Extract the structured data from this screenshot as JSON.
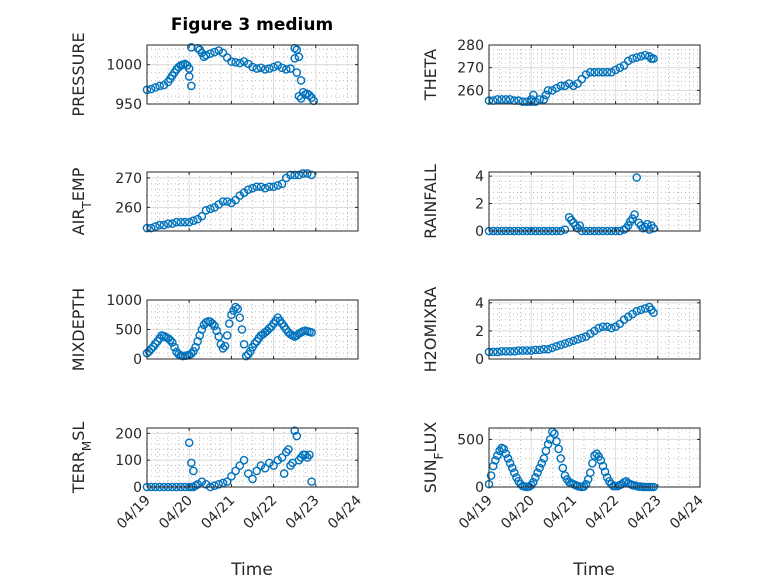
{
  "figure": {
    "title": "Figure 3 medium",
    "xlabel": "Time",
    "marker_color": "#0072BD"
  },
  "chart_data": [
    {
      "type": "scatter",
      "name": "pressure",
      "title": "Figure 3 medium",
      "ylabel": [
        "PRESSURE"
      ],
      "ylim": [
        950,
        1025
      ],
      "yticks": [
        950,
        1000
      ],
      "xlim": [
        0,
        5
      ],
      "xticks": [
        "04/19",
        "04/20",
        "04/21",
        "04/22",
        "04/23",
        "04/24"
      ],
      "x": [
        0,
        0.1,
        0.2,
        0.3,
        0.4,
        0.5,
        0.55,
        0.6,
        0.65,
        0.7,
        0.75,
        0.8,
        0.85,
        0.9,
        0.95,
        1.0,
        1.05,
        1.2,
        1.25,
        1.3,
        1.35,
        1.4,
        1.5,
        1.6,
        1.7,
        1.8,
        1.9,
        2.0,
        2.1,
        2.2,
        2.3,
        2.4,
        2.5,
        2.6,
        2.7,
        2.8,
        2.9,
        3.0,
        3.1,
        3.2,
        3.3,
        3.4,
        3.5,
        3.55,
        3.6,
        3.65,
        3.7,
        3.75,
        3.8,
        3.85,
        3.9,
        3.95,
        1.0,
        1.05,
        3.5,
        3.55,
        3.6,
        3.65
      ],
      "y": [
        968,
        969,
        971,
        973,
        974,
        978,
        982,
        986,
        990,
        994,
        997,
        999,
        1000,
        1001,
        999,
        995,
        1022,
        1021,
        1019,
        1015,
        1010,
        1012,
        1014,
        1016,
        1018,
        1015,
        1009,
        1004,
        1003,
        1002,
        1004,
        1001,
        997,
        995,
        996,
        994,
        995,
        997,
        999,
        996,
        994,
        995,
        1021,
        1019,
        1010,
        980,
        965,
        962,
        963,
        961,
        958,
        954,
        985,
        973,
        1008,
        990,
        960,
        957
      ]
    },
    {
      "type": "scatter",
      "name": "theta",
      "title": "",
      "ylabel": [
        "THETA"
      ],
      "ylim": [
        254,
        280
      ],
      "yticks": [
        260,
        270,
        280
      ],
      "xlim": [
        0,
        5
      ],
      "xticks": [
        "04/19",
        "04/20",
        "04/21",
        "04/22",
        "04/23",
        "04/24"
      ],
      "x": [
        0,
        0.1,
        0.2,
        0.3,
        0.4,
        0.5,
        0.6,
        0.7,
        0.8,
        0.9,
        1.0,
        1.1,
        1.2,
        1.3,
        1.35,
        1.4,
        1.5,
        1.6,
        1.7,
        1.8,
        1.9,
        2.0,
        2.1,
        2.2,
        2.3,
        2.4,
        2.5,
        2.6,
        2.7,
        2.8,
        2.9,
        3.0,
        3.1,
        3.2,
        3.3,
        3.4,
        3.5,
        3.6,
        3.7,
        3.8,
        3.85,
        3.9,
        1.0,
        1.05
      ],
      "y": [
        255.5,
        255.5,
        256,
        256,
        256,
        256,
        255.5,
        255.5,
        255,
        255,
        255,
        255,
        256,
        256,
        258,
        260,
        260,
        261,
        262,
        262,
        263,
        262,
        263,
        265,
        267,
        268,
        268,
        268,
        268,
        268,
        268,
        269,
        270,
        271,
        273,
        274,
        274.5,
        275,
        275.5,
        275,
        274,
        274,
        256,
        258
      ]
    },
    {
      "type": "scatter",
      "name": "air_temp",
      "title": "",
      "ylabel": [
        "AIR",
        "T",
        "EMP"
      ],
      "ylim": [
        252,
        272
      ],
      "yticks": [
        260,
        270
      ],
      "xlim": [
        0,
        5
      ],
      "xticks": [
        "04/19",
        "04/20",
        "04/21",
        "04/22",
        "04/23",
        "04/24"
      ],
      "x": [
        0,
        0.1,
        0.2,
        0.3,
        0.4,
        0.5,
        0.6,
        0.7,
        0.8,
        0.9,
        1.0,
        1.1,
        1.2,
        1.3,
        1.4,
        1.5,
        1.6,
        1.7,
        1.8,
        1.9,
        2.0,
        2.1,
        2.2,
        2.3,
        2.4,
        2.5,
        2.6,
        2.7,
        2.8,
        2.9,
        3.0,
        3.1,
        3.2,
        3.3,
        3.4,
        3.5,
        3.6,
        3.7,
        3.8,
        3.9
      ],
      "y": [
        253,
        253,
        253.5,
        254,
        254,
        254.5,
        254.5,
        255,
        255,
        255,
        255,
        255.5,
        256,
        257,
        259,
        259.5,
        260,
        261,
        262,
        262,
        261.5,
        262.5,
        264,
        265,
        266,
        266.5,
        267,
        267,
        266.5,
        267,
        267,
        267.5,
        268,
        270,
        271,
        271,
        271,
        271.5,
        271.5,
        271
      ]
    },
    {
      "type": "scatter",
      "name": "rainfall",
      "title": "",
      "ylabel": [
        "RAINFALL"
      ],
      "ylim": [
        0,
        4.3
      ],
      "yticks": [
        0,
        2,
        4
      ],
      "xlim": [
        0,
        5
      ],
      "xticks": [
        "04/19",
        "04/20",
        "04/21",
        "04/22",
        "04/23",
        "04/24"
      ],
      "x": [
        0,
        0.1,
        0.2,
        0.3,
        0.4,
        0.5,
        0.6,
        0.7,
        0.8,
        0.9,
        1.0,
        1.1,
        1.2,
        1.3,
        1.4,
        1.5,
        1.6,
        1.7,
        1.8,
        1.9,
        1.95,
        2.0,
        2.05,
        2.1,
        2.15,
        2.2,
        2.3,
        2.4,
        2.5,
        2.6,
        2.7,
        2.8,
        2.9,
        3.0,
        3.1,
        3.2,
        3.25,
        3.3,
        3.35,
        3.4,
        3.45,
        3.5,
        3.55,
        3.6,
        3.65,
        3.7,
        3.75,
        3.8,
        3.85,
        3.9
      ],
      "y": [
        0,
        0,
        0,
        0,
        0,
        0,
        0,
        0,
        0,
        0,
        0,
        0,
        0,
        0,
        0,
        0,
        0,
        0,
        0.1,
        1,
        0.8,
        0.6,
        0.4,
        0.2,
        0.4,
        0,
        0,
        0,
        0,
        0,
        0,
        0,
        0,
        0,
        0,
        0.1,
        0.2,
        0.4,
        0.7,
        0.9,
        1.2,
        3.9,
        0.6,
        0.4,
        0.2,
        0.3,
        0.5,
        0.1,
        0.4,
        0.2
      ]
    },
    {
      "type": "scatter",
      "name": "mixdepth",
      "title": "",
      "ylabel": [
        "MIXDEPTH"
      ],
      "ylim": [
        0,
        1000
      ],
      "yticks": [
        0,
        500,
        1000
      ],
      "xlim": [
        0,
        5
      ],
      "xticks": [
        "04/19",
        "04/20",
        "04/21",
        "04/22",
        "04/23",
        "04/24"
      ],
      "x": [
        0,
        0.05,
        0.1,
        0.15,
        0.2,
        0.25,
        0.3,
        0.35,
        0.4,
        0.45,
        0.5,
        0.55,
        0.6,
        0.65,
        0.7,
        0.75,
        0.8,
        0.85,
        0.9,
        0.95,
        1.0,
        1.05,
        1.1,
        1.15,
        1.2,
        1.25,
        1.3,
        1.35,
        1.4,
        1.45,
        1.5,
        1.55,
        1.6,
        1.65,
        1.7,
        1.75,
        1.8,
        1.85,
        1.9,
        1.95,
        2.0,
        2.05,
        2.1,
        2.15,
        2.2,
        2.25,
        2.3,
        2.35,
        2.4,
        2.45,
        2.5,
        2.55,
        2.6,
        2.65,
        2.7,
        2.75,
        2.8,
        2.85,
        2.9,
        2.95,
        3.0,
        3.05,
        3.1,
        3.15,
        3.2,
        3.25,
        3.3,
        3.35,
        3.4,
        3.45,
        3.5,
        3.55,
        3.6,
        3.65,
        3.7,
        3.75,
        3.8,
        3.85,
        3.9
      ],
      "y": [
        100,
        130,
        170,
        210,
        260,
        300,
        350,
        400,
        390,
        370,
        350,
        320,
        280,
        200,
        120,
        80,
        60,
        50,
        55,
        60,
        70,
        90,
        130,
        200,
        300,
        400,
        500,
        580,
        620,
        640,
        630,
        600,
        560,
        480,
        380,
        250,
        180,
        220,
        400,
        600,
        750,
        820,
        880,
        850,
        700,
        500,
        250,
        50,
        80,
        130,
        200,
        260,
        300,
        350,
        400,
        420,
        450,
        480,
        520,
        550,
        600,
        650,
        700,
        650,
        600,
        550,
        500,
        450,
        420,
        400,
        380,
        400,
        430,
        450,
        470,
        480,
        470,
        460,
        450
      ]
    },
    {
      "type": "scatter",
      "name": "h2omixra",
      "title": "",
      "ylabel": [
        "H2OMIXRA"
      ],
      "ylim": [
        0,
        4.2
      ],
      "yticks": [
        0,
        2,
        4
      ],
      "xlim": [
        0,
        5
      ],
      "xticks": [
        "04/19",
        "04/20",
        "04/21",
        "04/22",
        "04/23",
        "04/24"
      ],
      "x": [
        0,
        0.1,
        0.2,
        0.3,
        0.4,
        0.5,
        0.6,
        0.7,
        0.8,
        0.9,
        1.0,
        1.1,
        1.2,
        1.3,
        1.4,
        1.5,
        1.6,
        1.7,
        1.8,
        1.9,
        2.0,
        2.1,
        2.2,
        2.3,
        2.4,
        2.5,
        2.6,
        2.7,
        2.8,
        2.9,
        3.0,
        3.1,
        3.2,
        3.3,
        3.4,
        3.5,
        3.6,
        3.7,
        3.8,
        3.85,
        3.9
      ],
      "y": [
        0.5,
        0.5,
        0.5,
        0.55,
        0.55,
        0.55,
        0.55,
        0.6,
        0.6,
        0.6,
        0.6,
        0.65,
        0.65,
        0.7,
        0.7,
        0.8,
        0.9,
        1.0,
        1.1,
        1.2,
        1.3,
        1.4,
        1.5,
        1.6,
        1.8,
        2.0,
        2.2,
        2.3,
        2.3,
        2.2,
        2.3,
        2.5,
        2.8,
        3.0,
        3.2,
        3.4,
        3.5,
        3.6,
        3.7,
        3.5,
        3.3
      ]
    },
    {
      "type": "scatter",
      "name": "terr_msl",
      "title": "",
      "ylabel": [
        "TERR",
        "M",
        "SL"
      ],
      "ylim": [
        0,
        220
      ],
      "yticks": [
        0,
        100,
        200
      ],
      "xlim": [
        0,
        5
      ],
      "xticks": [
        "04/19",
        "04/20",
        "04/21",
        "04/22",
        "04/23",
        "04/24"
      ],
      "x": [
        0,
        0.1,
        0.2,
        0.3,
        0.4,
        0.5,
        0.6,
        0.7,
        0.8,
        0.9,
        1.0,
        1.05,
        1.1,
        1.15,
        1.2,
        1.3,
        1.4,
        1.5,
        1.6,
        1.7,
        1.8,
        1.9,
        2.0,
        2.1,
        2.2,
        2.3,
        2.4,
        2.5,
        2.6,
        2.7,
        2.8,
        2.9,
        3.0,
        3.1,
        3.2,
        3.25,
        3.3,
        3.35,
        3.4,
        3.45,
        3.5,
        3.55,
        3.6,
        3.65,
        3.7,
        3.75,
        3.8,
        3.85,
        3.9,
        1.0,
        1.05,
        1.1
      ],
      "y": [
        0,
        0,
        0,
        0,
        0,
        0,
        0,
        0,
        0,
        0,
        0,
        0,
        0,
        5,
        10,
        20,
        10,
        0,
        5,
        10,
        15,
        20,
        40,
        60,
        80,
        100,
        50,
        30,
        60,
        80,
        70,
        90,
        80,
        100,
        110,
        50,
        130,
        140,
        80,
        90,
        210,
        190,
        100,
        110,
        120,
        120,
        110,
        120,
        20,
        165,
        90,
        60
      ]
    },
    {
      "type": "scatter",
      "name": "sun_flux",
      "title": "",
      "ylabel": [
        "SUN",
        "F",
        "LUX"
      ],
      "ylim": [
        0,
        620
      ],
      "yticks": [
        0,
        500
      ],
      "xlim": [
        0,
        5
      ],
      "xticks": [
        "04/19",
        "04/20",
        "04/21",
        "04/22",
        "04/23",
        "04/24"
      ],
      "x": [
        0,
        0.05,
        0.1,
        0.15,
        0.2,
        0.25,
        0.3,
        0.35,
        0.4,
        0.45,
        0.5,
        0.55,
        0.6,
        0.65,
        0.7,
        0.75,
        0.8,
        0.85,
        0.9,
        0.95,
        1.0,
        1.05,
        1.1,
        1.15,
        1.2,
        1.25,
        1.3,
        1.35,
        1.4,
        1.45,
        1.5,
        1.55,
        1.6,
        1.65,
        1.7,
        1.75,
        1.8,
        1.85,
        1.9,
        1.95,
        2.0,
        2.05,
        2.1,
        2.15,
        2.2,
        2.25,
        2.3,
        2.35,
        2.4,
        2.45,
        2.5,
        2.55,
        2.6,
        2.65,
        2.7,
        2.75,
        2.8,
        2.85,
        2.9,
        2.95,
        3.0,
        3.05,
        3.1,
        3.15,
        3.2,
        3.25,
        3.3,
        3.35,
        3.4,
        3.45,
        3.5,
        3.55,
        3.6,
        3.65,
        3.7,
        3.75,
        3.8,
        3.85,
        3.9
      ],
      "y": [
        30,
        120,
        220,
        280,
        330,
        380,
        410,
        400,
        350,
        300,
        250,
        200,
        150,
        100,
        60,
        30,
        10,
        5,
        0,
        5,
        20,
        50,
        100,
        150,
        200,
        250,
        300,
        380,
        450,
        500,
        580,
        560,
        480,
        400,
        300,
        200,
        120,
        80,
        50,
        40,
        30,
        20,
        10,
        5,
        0,
        5,
        30,
        80,
        150,
        250,
        330,
        350,
        320,
        280,
        220,
        160,
        100,
        60,
        30,
        10,
        10,
        10,
        20,
        30,
        50,
        60,
        40,
        30,
        20,
        15,
        10,
        5,
        5,
        0,
        0,
        0,
        0,
        0,
        0
      ]
    }
  ]
}
